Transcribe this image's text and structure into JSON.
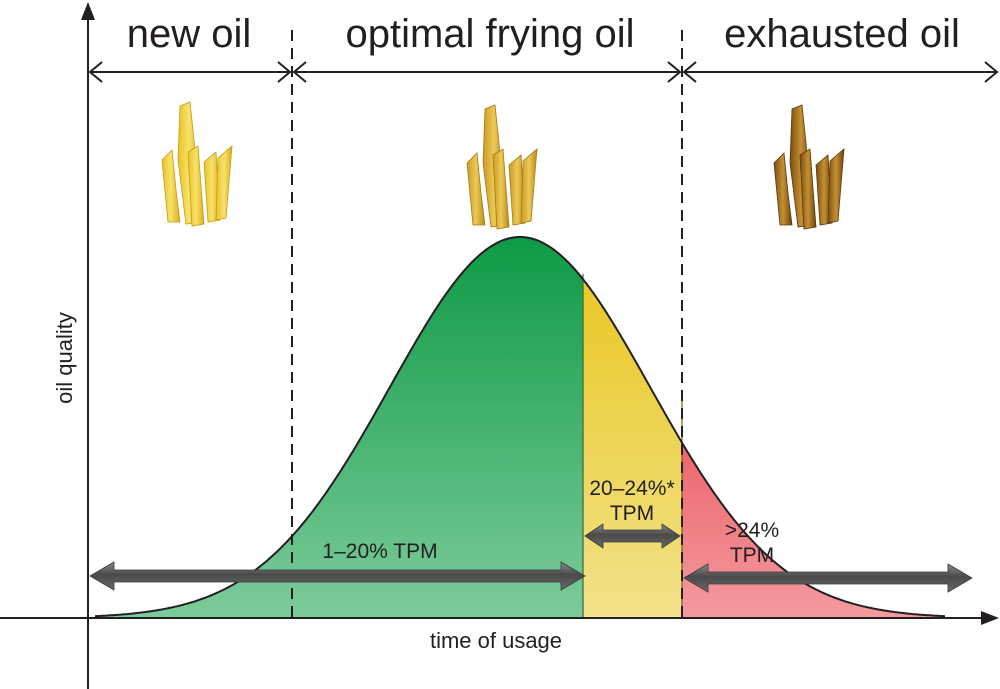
{
  "phases": {
    "new_oil": "new oil",
    "optimal": "optimal frying oil",
    "exhausted": "exhausted oil"
  },
  "axes": {
    "y_label": "oil quality",
    "x_label": "time of usage"
  },
  "ranges": {
    "green": "1–20% TPM",
    "yellow_line1": "20–24%*",
    "yellow_line2": "TPM",
    "red_line1": ">24%",
    "red_line2": "TPM"
  },
  "colors": {
    "green_top": "#0e9a45",
    "green_bottom": "#7dcb9c",
    "yellow_top": "#e8c51a",
    "yellow_bottom": "#f3e28a",
    "red_top": "#e02a2f",
    "red_bottom": "#f49aa0",
    "arrow": "#555555",
    "fries_fresh": "#f2d43b",
    "fries_optimal": "#e0b63a",
    "fries_exhausted": "#a8731f"
  }
}
